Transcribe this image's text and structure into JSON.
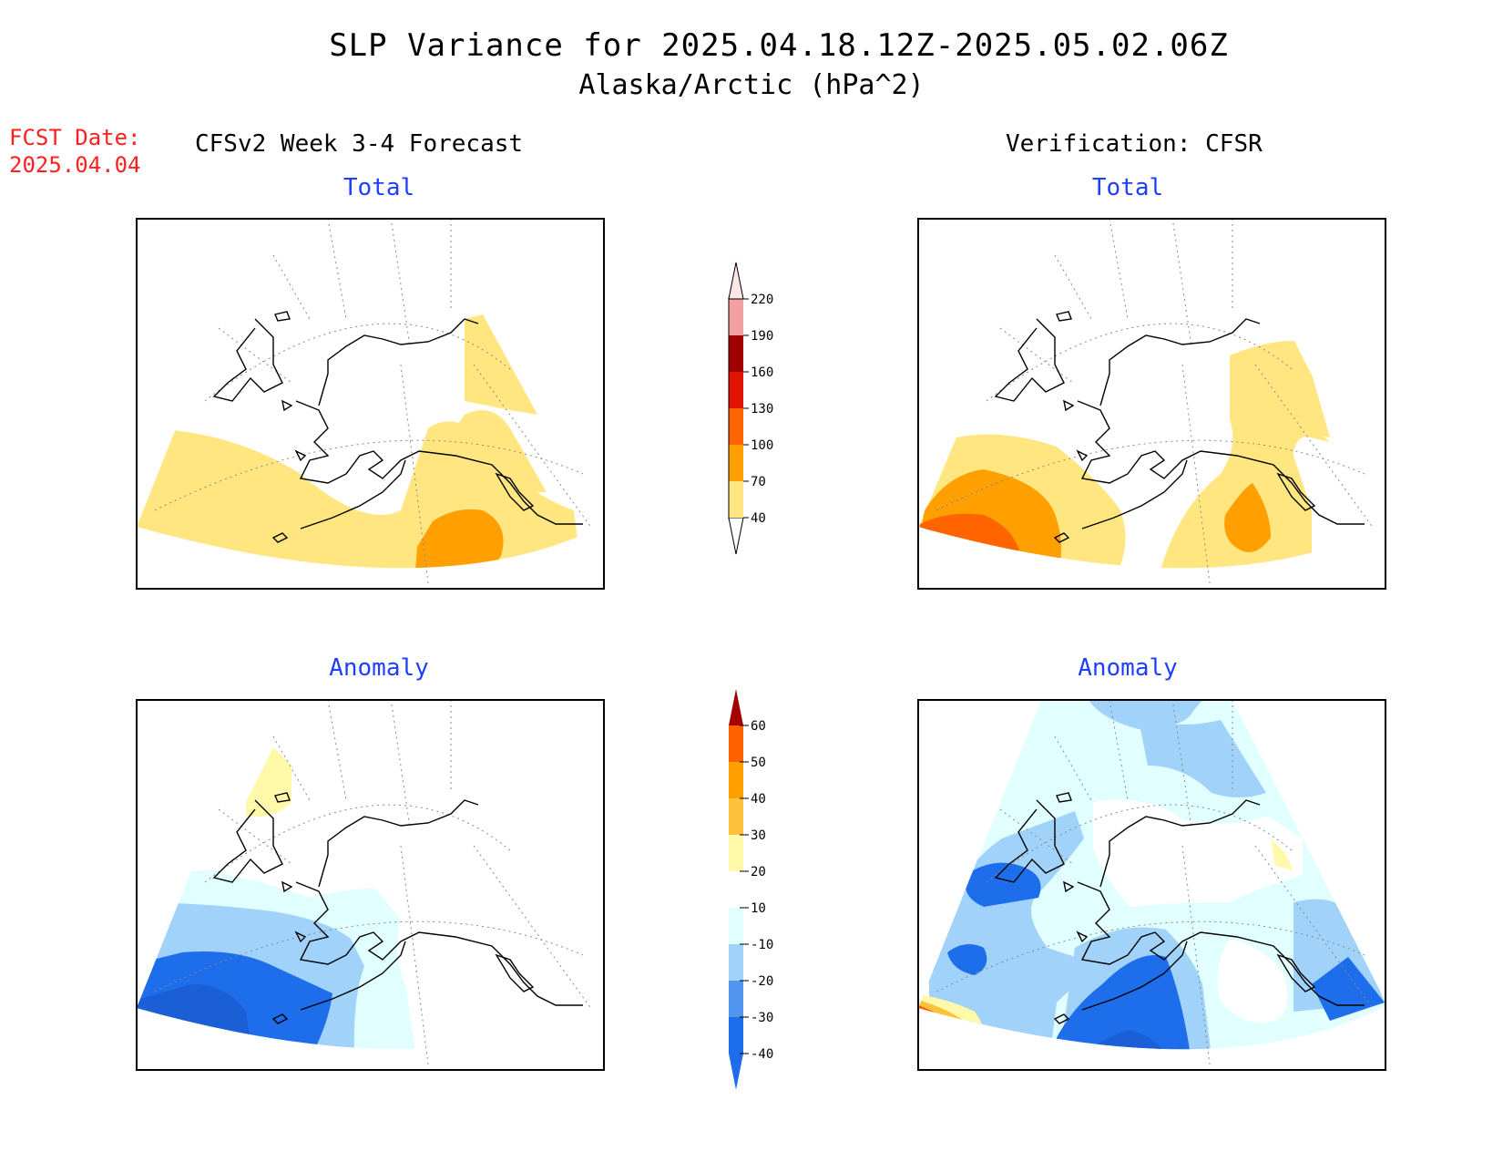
{
  "header": {
    "title": "SLP Variance for 2025.04.18.12Z-2025.05.02.06Z",
    "subtitle": "Alaska/Arctic (hPa^2)",
    "fcst_label": "FCST Date:",
    "fcst_date": "2025.04.04",
    "left_heading": "CFSv2 Week 3-4 Forecast",
    "right_heading": "Verification: CFSR"
  },
  "panels": {
    "forecast_total_title": "Total",
    "verification_total_title": "Total",
    "forecast_anomaly_title": "Anomaly",
    "verification_anomaly_title": "Anomaly"
  },
  "colorbars": {
    "total": {
      "tick_labels": [
        "40",
        "70",
        "100",
        "130",
        "160",
        "190",
        "220"
      ],
      "colors": [
        "#ffe680",
        "#ffa000",
        "#ff6400",
        "#e01400",
        "#a00000",
        "#f0a0a0",
        "#fde8e8"
      ]
    },
    "anomaly": {
      "tick_labels": [
        "-40",
        "-30",
        "-20",
        "-10",
        "10",
        "20",
        "30",
        "40",
        "50",
        "60"
      ],
      "colors": [
        "#1e6eeb",
        "#1e6eeb",
        "#5096f0",
        "#a0d2fa",
        "#e1ffff",
        "#ffffff",
        "#fffaaa",
        "#ffc03c",
        "#ffa000",
        "#ff6000",
        "#e11400",
        "#a50000"
      ]
    }
  },
  "colors": {
    "fcst_red": "#ff2020",
    "panel_title_blue": "#1f3fff"
  }
}
